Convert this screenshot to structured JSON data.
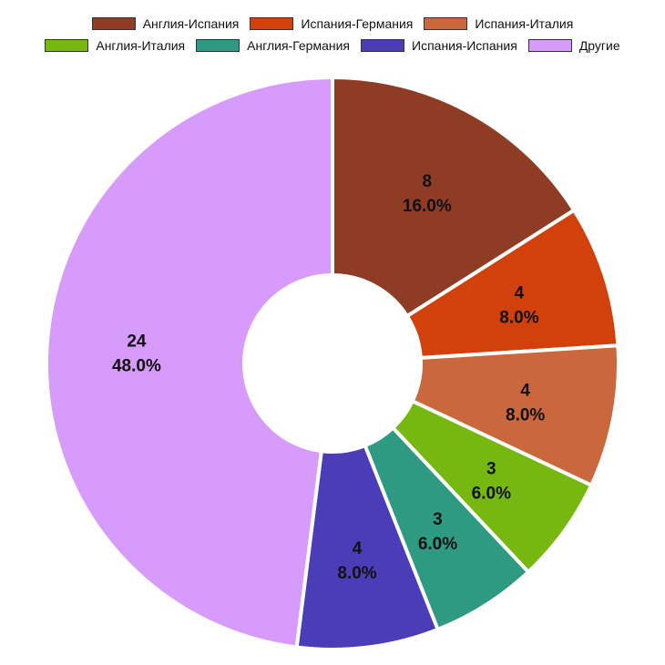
{
  "chart_data": {
    "type": "pie",
    "style": "donut",
    "legend_position": "top",
    "slices": [
      {
        "label": "Англия-Испания",
        "value": 8,
        "percent": "16.0%",
        "color": "#8f3c24"
      },
      {
        "label": "Испания-Германия",
        "value": 4,
        "percent": "8.0%",
        "color": "#d2400b"
      },
      {
        "label": "Испания-Италия",
        "value": 4,
        "percent": "8.0%",
        "color": "#cb673d"
      },
      {
        "label": "Англия-Италия",
        "value": 3,
        "percent": "6.0%",
        "color": "#76b80f"
      },
      {
        "label": "Англия-Германия",
        "value": 3,
        "percent": "6.0%",
        "color": "#2e9a82"
      },
      {
        "label": "Испания-Испания",
        "value": 4,
        "percent": "8.0%",
        "color": "#4b3db8"
      },
      {
        "label": "Другие",
        "value": 24,
        "percent": "48.0%",
        "color": "#d79bfb"
      }
    ]
  }
}
